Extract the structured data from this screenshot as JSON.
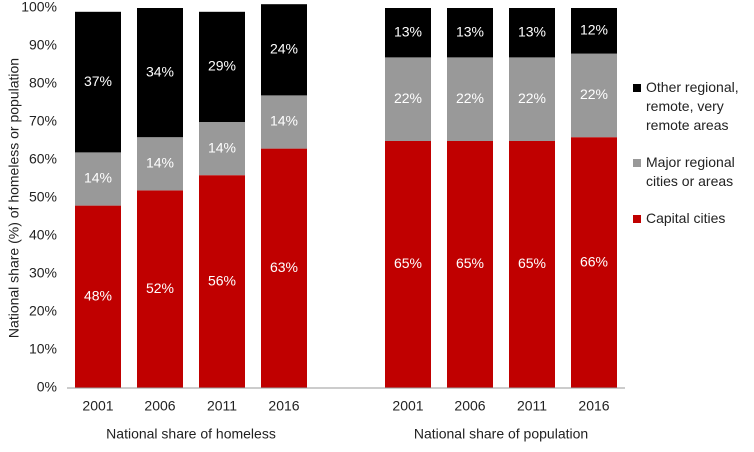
{
  "chart_data": {
    "type": "stacked-bar",
    "y_axis_label": "National share (%) of homeless or population",
    "categories": [
      "2001",
      "2006",
      "2011",
      "2016",
      null,
      "2001",
      "2006",
      "2011",
      "2016"
    ],
    "group_labels": [
      "National share of homeless",
      "National share of population"
    ],
    "series": [
      {
        "name": "Capital cities",
        "color": "#c00000",
        "values": [
          48,
          52,
          56,
          63,
          null,
          65,
          65,
          65,
          66
        ],
        "value_labels": [
          "48%",
          "52%",
          "56%",
          "63%",
          null,
          "65%",
          "65%",
          "65%",
          "66%"
        ]
      },
      {
        "name": "Major regional cities or areas",
        "color": "#999999",
        "values": [
          14,
          14,
          14,
          14,
          null,
          22,
          22,
          22,
          22
        ],
        "value_labels": [
          "14%",
          "14%",
          "14%",
          "14%",
          null,
          "22%",
          "22%",
          "22%",
          "22%"
        ]
      },
      {
        "name": "Other regional, remote, very remote areas",
        "color": "#000000",
        "values": [
          37,
          34,
          29,
          24,
          null,
          13,
          13,
          13,
          12
        ],
        "value_labels": [
          "37%",
          "34%",
          "29%",
          "24%",
          null,
          "13%",
          "13%",
          "13%",
          "12%"
        ]
      }
    ],
    "ylim": [
      0,
      100
    ],
    "yticks": [
      {
        "value": 0,
        "label": "0%"
      },
      {
        "value": 10,
        "label": "10%"
      },
      {
        "value": 20,
        "label": "20%"
      },
      {
        "value": 30,
        "label": "30%"
      },
      {
        "value": 40,
        "label": "40%"
      },
      {
        "value": 50,
        "label": "50%"
      },
      {
        "value": 60,
        "label": "60%"
      },
      {
        "value": 70,
        "label": "70%"
      },
      {
        "value": 80,
        "label": "80%"
      },
      {
        "value": 90,
        "label": "90%"
      },
      {
        "value": 100,
        "label": "100%"
      }
    ],
    "grid": false,
    "legend": "right"
  }
}
